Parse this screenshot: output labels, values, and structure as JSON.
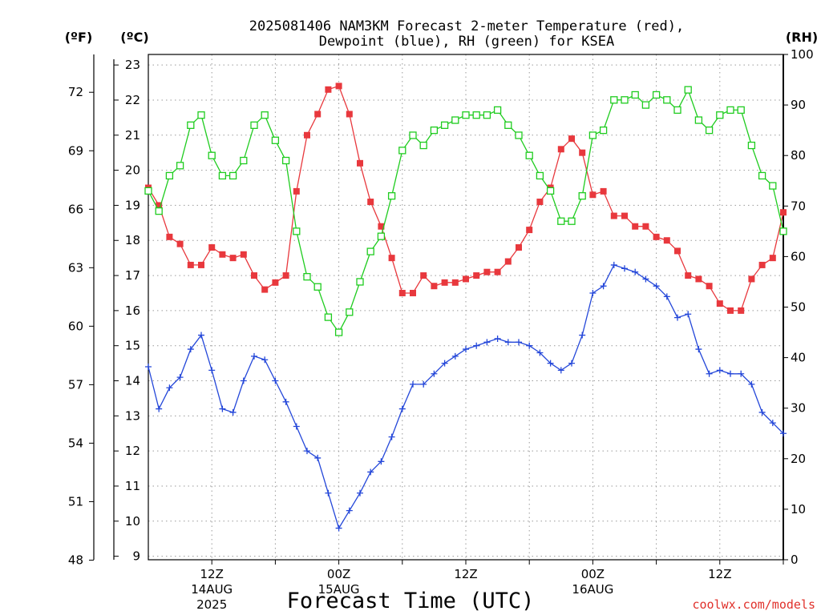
{
  "chart_data": {
    "type": "line",
    "title_line1": "2025081406 NAM3KM Forecast 2-meter Temperature (red),",
    "title_line2": "Dewpoint (blue), RH (green) for KSEA",
    "xlabel": "Forecast Time (UTC)",
    "credit": "coolwx.com/models",
    "units": {
      "fahrenheit": "(ºF)",
      "celsius": "(ºC)",
      "rh": "(RH)"
    },
    "x_tick_labels": [
      {
        "label": "12Z",
        "date_line": "14AUG",
        "year_line": "2025",
        "hour": 6
      },
      {
        "label": "00Z",
        "date_line": "15AUG",
        "year_line": "",
        "hour": 18
      },
      {
        "label": "12Z",
        "date_line": "",
        "year_line": "",
        "hour": 30
      },
      {
        "label": "00Z",
        "date_line": "16AUG",
        "year_line": "",
        "hour": 42
      },
      {
        "label": "12Z",
        "date_line": "",
        "year_line": "",
        "hour": 54
      }
    ],
    "x_hours": {
      "start_valid": "2025-08-14 06Z",
      "step_hours": 1,
      "count": 61
    },
    "y_left_celsius": {
      "range": [
        8.9,
        23.3
      ],
      "ticks": [
        9,
        10,
        11,
        12,
        13,
        14,
        15,
        16,
        17,
        18,
        19,
        20,
        21,
        22,
        23
      ]
    },
    "y_left_fahrenheit": {
      "ticks": [
        48,
        51,
        54,
        57,
        60,
        63,
        66,
        69,
        72
      ]
    },
    "y_right_rh": {
      "range": [
        0,
        100
      ],
      "ticks": [
        0,
        10,
        20,
        30,
        40,
        50,
        60,
        70,
        80,
        90,
        100
      ]
    },
    "grid": true,
    "series": [
      {
        "name": "Temperature",
        "axis": "celsius",
        "color": "#e8383d",
        "marker": "filled-square",
        "values": [
          19.5,
          19.0,
          18.1,
          17.9,
          17.3,
          17.3,
          17.8,
          17.6,
          17.5,
          17.6,
          17.0,
          16.6,
          16.8,
          17.0,
          19.4,
          21.0,
          21.6,
          22.3,
          22.4,
          21.6,
          20.2,
          19.1,
          18.4,
          17.5,
          16.5,
          16.5,
          17.0,
          16.7,
          16.8,
          16.8,
          16.9,
          17.0,
          17.1,
          17.1,
          17.4,
          17.8,
          18.3,
          19.1,
          19.5,
          20.6,
          20.9,
          20.5,
          19.3,
          19.4,
          18.7,
          18.7,
          18.4,
          18.4,
          18.1,
          18.0,
          17.7,
          17.0,
          16.9,
          16.7,
          16.2,
          16.0,
          16.0,
          16.9,
          17.3,
          17.5,
          18.8
        ]
      },
      {
        "name": "Dewpoint",
        "axis": "celsius",
        "color": "#2447d9",
        "marker": "plus",
        "values": [
          14.4,
          13.2,
          13.8,
          14.1,
          14.9,
          15.3,
          14.3,
          13.2,
          13.1,
          14.0,
          14.7,
          14.6,
          14.0,
          13.4,
          12.7,
          12.0,
          11.8,
          10.8,
          9.8,
          10.3,
          10.8,
          11.4,
          11.7,
          12.4,
          13.2,
          13.9,
          13.9,
          14.2,
          14.5,
          14.7,
          14.9,
          15.0,
          15.1,
          15.2,
          15.1,
          15.1,
          15.0,
          14.8,
          14.5,
          14.3,
          14.5,
          15.3,
          16.5,
          16.7,
          17.3,
          17.2,
          17.1,
          16.9,
          16.7,
          16.4,
          15.8,
          15.9,
          14.9,
          14.2,
          14.3,
          14.2,
          14.2,
          13.9,
          13.1,
          12.8,
          12.5
        ]
      },
      {
        "name": "RH",
        "axis": "rh",
        "color": "#1fcc1f",
        "marker": "open-square",
        "values": [
          73,
          69,
          76,
          78,
          86,
          88,
          80,
          76,
          76,
          79,
          86,
          88,
          83,
          79,
          65,
          56,
          54,
          48,
          45,
          49,
          55,
          61,
          64,
          72,
          81,
          84,
          82,
          85,
          86,
          87,
          88,
          88,
          88,
          89,
          86,
          84,
          80,
          76,
          73,
          67,
          67,
          72,
          84,
          85,
          91,
          91,
          92,
          90,
          92,
          91,
          89,
          93,
          87,
          85,
          88,
          89,
          89,
          82,
          76,
          74,
          65
        ]
      }
    ]
  }
}
